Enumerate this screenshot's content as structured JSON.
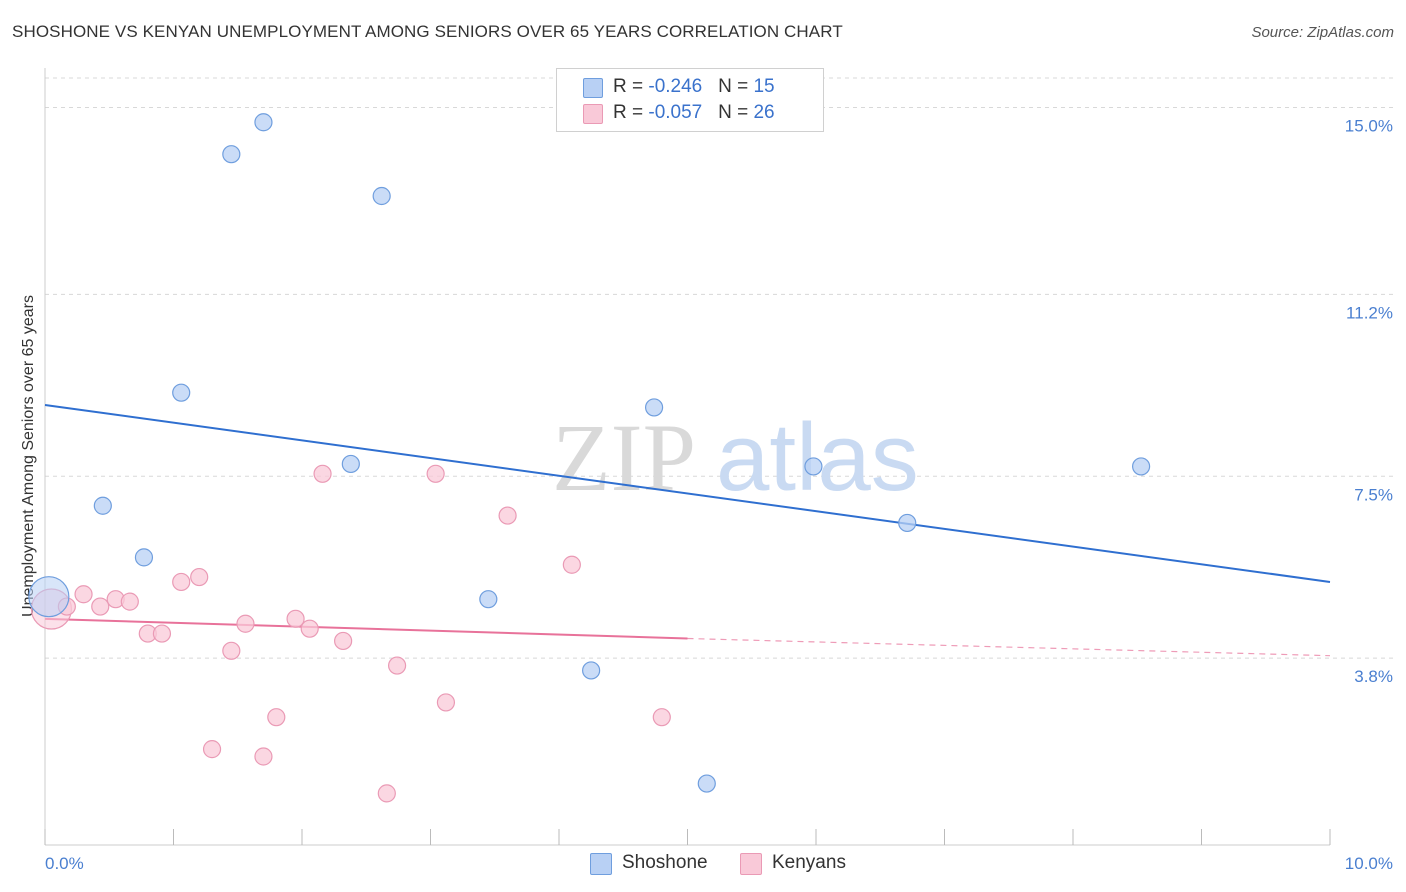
{
  "title": "SHOSHONE VS KENYAN UNEMPLOYMENT AMONG SENIORS OVER 65 YEARS CORRELATION CHART",
  "source": "Source: ZipAtlas.com",
  "watermark": {
    "zip": "ZIP",
    "atlas": "atlas"
  },
  "legend": {
    "rows": [
      {
        "r_label": "R = ",
        "r_value": "-0.246",
        "n_label": "N = ",
        "n_value": "15"
      },
      {
        "r_label": "R = ",
        "r_value": "-0.057",
        "n_label": "N = ",
        "n_value": "26"
      }
    ]
  },
  "colors": {
    "shoshone_fill": "#b8d0f4",
    "shoshone_stroke": "#6f9ede",
    "shoshone_line": "#2f6fd0",
    "kenyans_fill": "#f9c9d8",
    "kenyans_stroke": "#ea9ab5",
    "kenyans_line": "#e8729a",
    "axis_text": "#4a7fd0",
    "grid": "#d8d8d8"
  },
  "chart_data": {
    "type": "scatter",
    "title": "SHOSHONE VS KENYAN UNEMPLOYMENT AMONG SENIORS OVER 65 YEARS CORRELATION CHART",
    "xlabel": "",
    "ylabel": "Unemployment Among Seniors over 65 years",
    "xlim": [
      0,
      10
    ],
    "ylim": [
      0,
      15.6
    ],
    "x_tick_labels": [
      "0.0%",
      "10.0%"
    ],
    "y_ticks": [
      3.8,
      7.5,
      11.2,
      15.0
    ],
    "y_tick_labels": [
      "3.8%",
      "7.5%",
      "11.2%",
      "15.0%"
    ],
    "legend_position": "top-center",
    "series": [
      {
        "name": "Shoshone",
        "R": -0.246,
        "N": 15,
        "points": [
          {
            "x": 0.03,
            "y": 5.05,
            "big": true
          },
          {
            "x": 0.45,
            "y": 6.9
          },
          {
            "x": 0.77,
            "y": 5.85
          },
          {
            "x": 1.06,
            "y": 9.2
          },
          {
            "x": 1.45,
            "y": 14.05
          },
          {
            "x": 1.7,
            "y": 14.7
          },
          {
            "x": 2.38,
            "y": 7.75
          },
          {
            "x": 2.62,
            "y": 13.2
          },
          {
            "x": 3.45,
            "y": 5.0
          },
          {
            "x": 4.25,
            "y": 3.55
          },
          {
            "x": 4.74,
            "y": 8.9
          },
          {
            "x": 5.15,
            "y": 1.25
          },
          {
            "x": 5.98,
            "y": 7.7
          },
          {
            "x": 6.71,
            "y": 6.55
          },
          {
            "x": 8.53,
            "y": 7.7
          }
        ],
        "trend": {
          "x0": 0.0,
          "y0": 8.95,
          "x1": 10.0,
          "y1": 5.35
        }
      },
      {
        "name": "Kenyans",
        "R": -0.057,
        "N": 26,
        "points": [
          {
            "x": 0.05,
            "y": 4.8,
            "big": true
          },
          {
            "x": 0.17,
            "y": 4.85
          },
          {
            "x": 0.3,
            "y": 5.1
          },
          {
            "x": 0.43,
            "y": 4.85
          },
          {
            "x": 0.55,
            "y": 5.0
          },
          {
            "x": 0.66,
            "y": 4.95
          },
          {
            "x": 0.8,
            "y": 4.3
          },
          {
            "x": 0.91,
            "y": 4.3
          },
          {
            "x": 1.06,
            "y": 5.35
          },
          {
            "x": 1.2,
            "y": 5.45
          },
          {
            "x": 1.3,
            "y": 1.95
          },
          {
            "x": 1.45,
            "y": 3.95
          },
          {
            "x": 1.56,
            "y": 4.5
          },
          {
            "x": 1.7,
            "y": 1.8
          },
          {
            "x": 1.8,
            "y": 2.6
          },
          {
            "x": 1.95,
            "y": 4.6
          },
          {
            "x": 2.06,
            "y": 4.4
          },
          {
            "x": 2.16,
            "y": 7.55
          },
          {
            "x": 2.32,
            "y": 4.15
          },
          {
            "x": 2.74,
            "y": 3.65
          },
          {
            "x": 2.66,
            "y": 1.05
          },
          {
            "x": 3.04,
            "y": 7.55
          },
          {
            "x": 3.12,
            "y": 2.9
          },
          {
            "x": 3.6,
            "y": 6.7
          },
          {
            "x": 4.1,
            "y": 5.7
          },
          {
            "x": 4.8,
            "y": 2.6
          }
        ],
        "trend": {
          "x0": 0.0,
          "y0": 4.6,
          "x1": 5.0,
          "y1": 4.2
        },
        "trend_dashed": {
          "x0": 5.0,
          "y0": 4.2,
          "x1": 10.0,
          "y1": 3.85
        }
      }
    ]
  },
  "bottom_legend": [
    {
      "label": "Shoshone"
    },
    {
      "label": "Kenyans"
    }
  ]
}
